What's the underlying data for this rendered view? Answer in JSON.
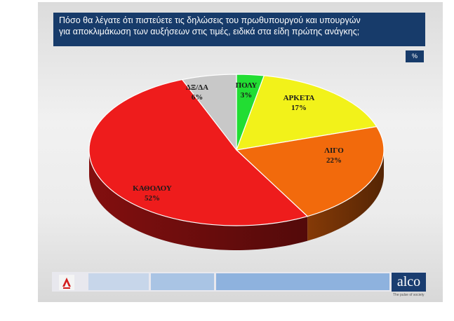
{
  "title": {
    "line1": "Πόσο θα λέγατε ότι πιστεύετε τις δηλώσεις του πρωθυπουργού και υπουργών",
    "line2": "για αποκλιμάκωση των αυξήσεων στις τιμές, ειδικά στα είδη πρώτης ανάγκης;"
  },
  "unit_badge": "%",
  "brand": {
    "name": "alco",
    "tagline": "The pulse of society",
    "broadcaster_logo": "alpha-news-logo"
  },
  "colors": {
    "title_bar": "#173b6a",
    "brand": "#1a3d70"
  },
  "chart_data": {
    "type": "pie",
    "title": "Πόσο θα λέγατε ότι πιστεύετε τις δηλώσεις του πρωθυπουργού και υπουργών για αποκλιμάκωση των αυξήσεων στις τιμές, ειδικά στα είδη πρώτης ανάγκης;",
    "unit": "%",
    "slices": [
      {
        "label": "ΠΟΛΥ",
        "value": 3,
        "value_label": "3%",
        "color": "#22dd33"
      },
      {
        "label": "ΑΡΚΕΤΑ",
        "value": 17,
        "value_label": "17%",
        "color": "#f2f21a"
      },
      {
        "label": "ΛΙΓΟ",
        "value": 22,
        "value_label": "22%",
        "color": "#f26a0c"
      },
      {
        "label": "ΚΑΘΟΛΟΥ",
        "value": 52,
        "value_label": "52%",
        "color": "#ee1c1c"
      },
      {
        "label": "ΔΞ/ΔΑ",
        "value": 6,
        "value_label": "6%",
        "color": "#c8c8c8"
      }
    ]
  }
}
